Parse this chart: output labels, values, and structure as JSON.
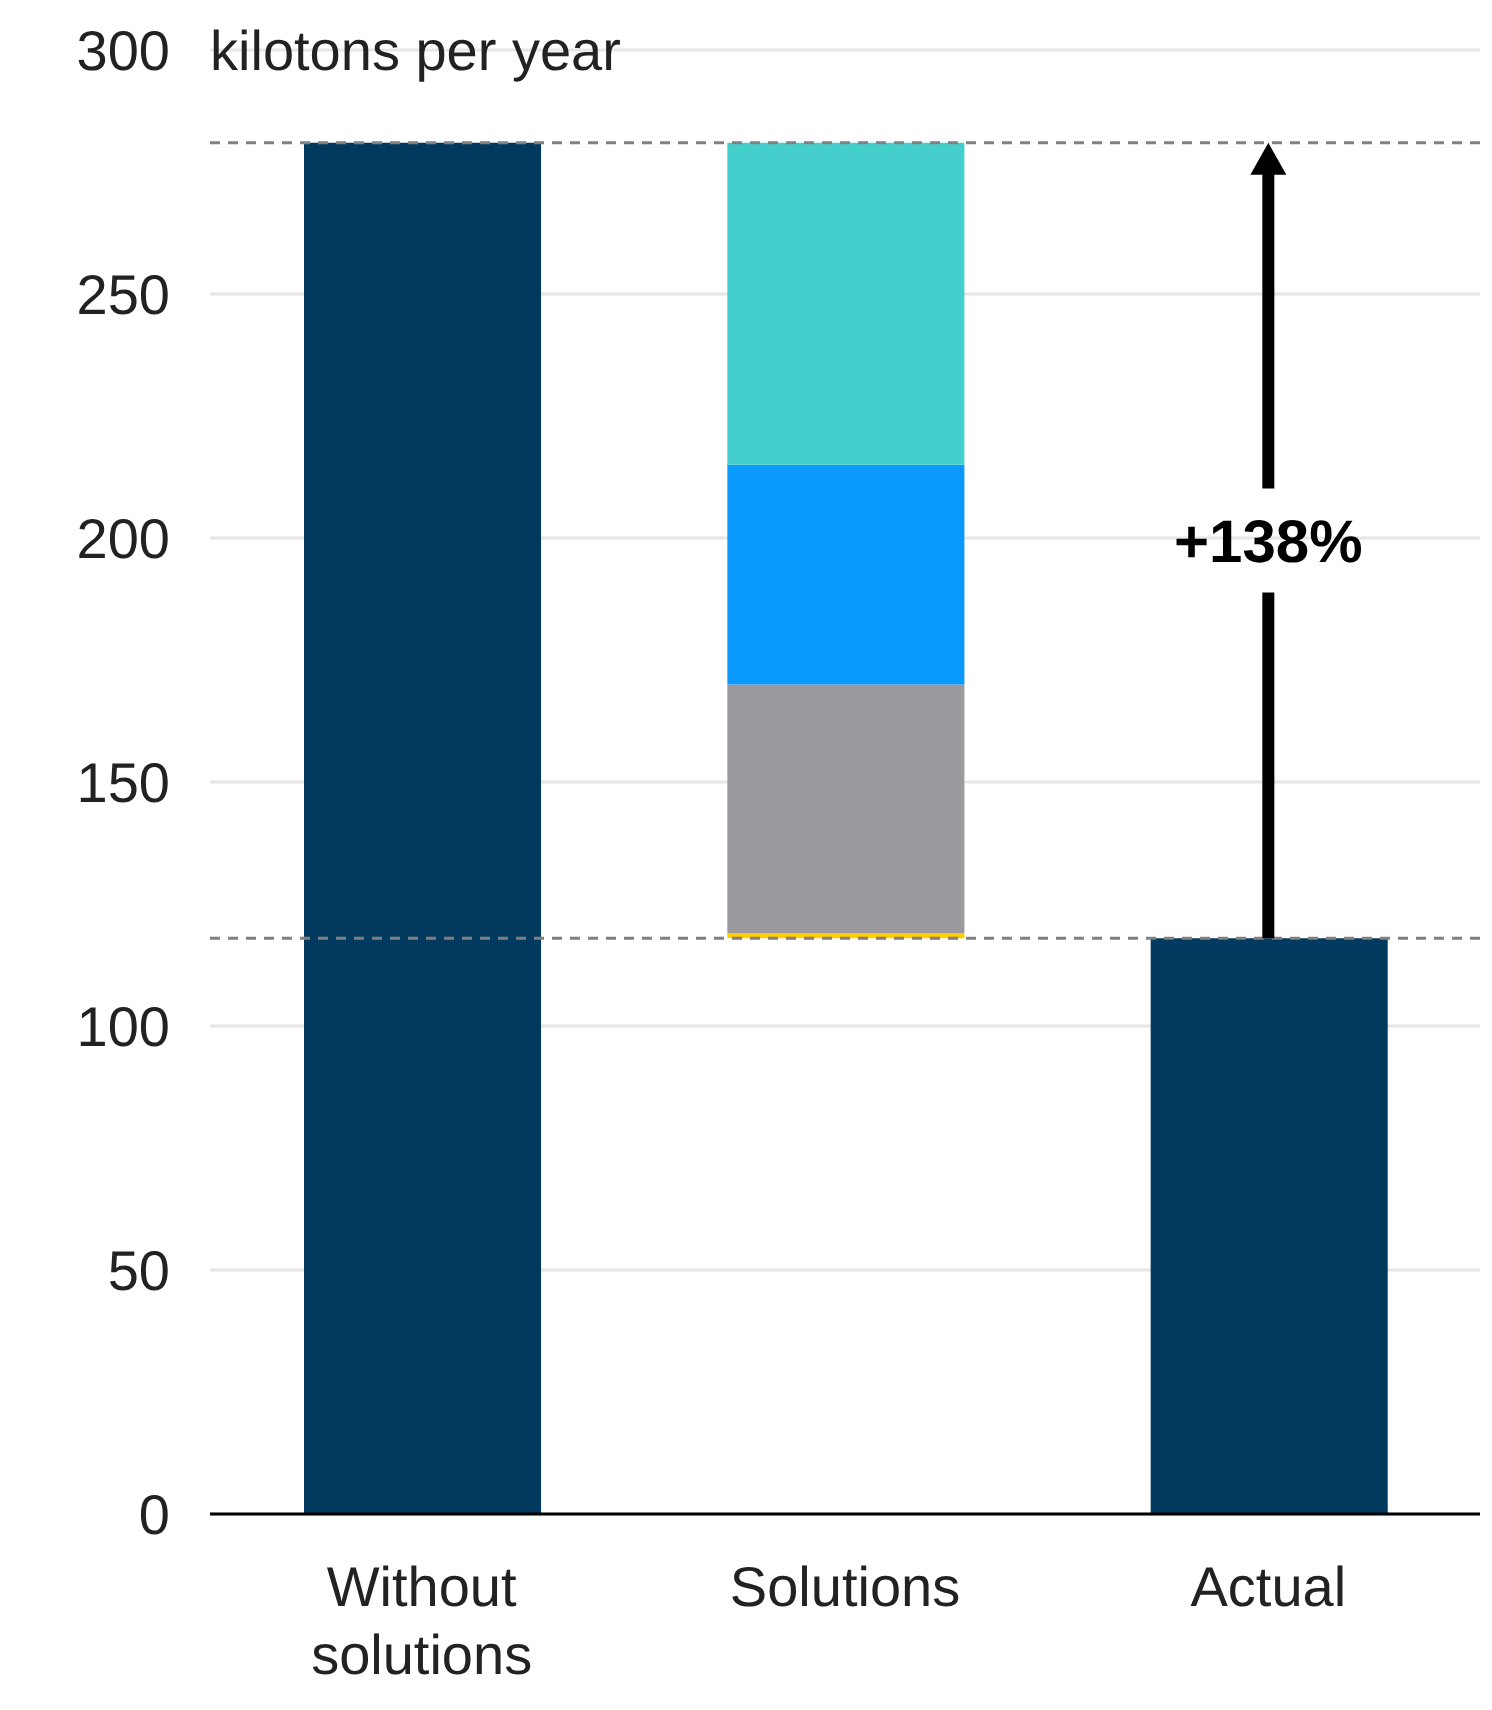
{
  "chart_data": {
    "type": "bar",
    "ylabel": "kilotons per year",
    "categories": [
      "Without solutions",
      "Solutions",
      "Actual"
    ],
    "series": [
      {
        "color": "#023a5f",
        "values": [
          281,
          null,
          118
        ]
      },
      {
        "color": "#ffcc00",
        "values": [
          null,
          1,
          null
        ],
        "base": [
          null,
          118,
          null
        ]
      },
      {
        "color": "#9b999d",
        "values": [
          null,
          51,
          null
        ],
        "base": [
          null,
          119,
          null
        ]
      },
      {
        "color": "#0a99ff",
        "values": [
          null,
          45,
          null
        ],
        "base": [
          null,
          170,
          null
        ]
      },
      {
        "color": "#44cfcd",
        "values": [
          null,
          66,
          null
        ],
        "base": [
          null,
          215,
          null
        ]
      }
    ],
    "ylim": [
      0,
      300
    ],
    "yticks": [
      0,
      50,
      100,
      150,
      200,
      250,
      300
    ],
    "grid": "y",
    "legend": false,
    "ref_lines": [
      {
        "axis": "y",
        "value": 281,
        "color": "#808080",
        "line_style": "dashed"
      },
      {
        "axis": "y",
        "value": 118,
        "color": "#808080",
        "line_style": "dashed"
      }
    ],
    "annotations": [
      "+138%"
    ]
  }
}
